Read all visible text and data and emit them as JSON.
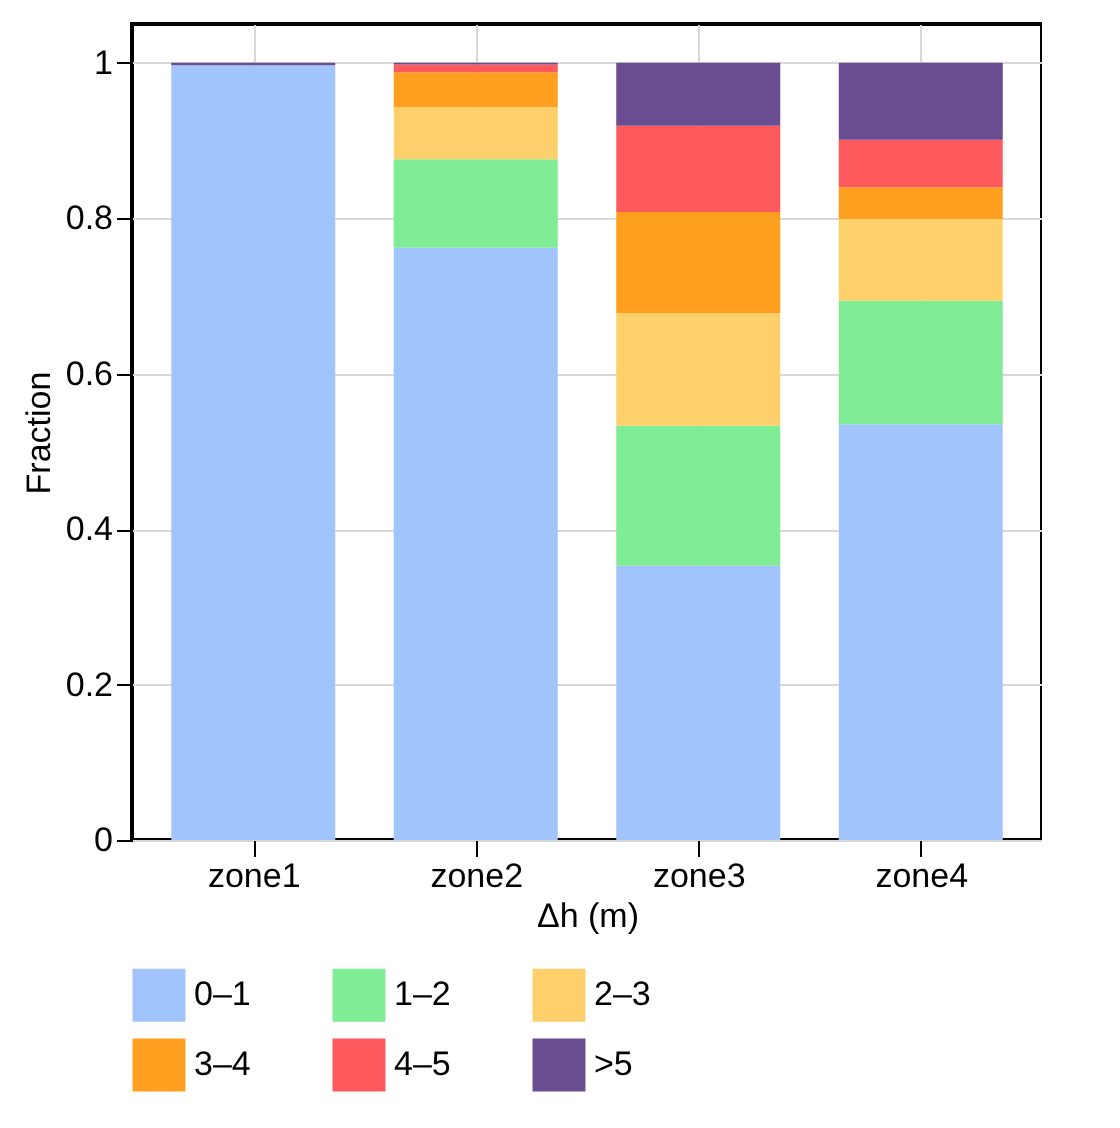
{
  "chart_data": {
    "type": "bar",
    "stacked": true,
    "xlabel": "Δh  (m)",
    "ylabel": "Fraction",
    "categories": [
      "zone1",
      "zone2",
      "zone3",
      "zone4"
    ],
    "series": [
      {
        "name": "0–1",
        "color": "#a2c4fd",
        "values": [
          0.997,
          0.762,
          0.353,
          0.535
        ]
      },
      {
        "name": "1–2",
        "color": "#80ec95",
        "values": [
          0,
          0.114,
          0.18,
          0.159
        ]
      },
      {
        "name": "2–3",
        "color": "#fed06b",
        "values": [
          0,
          0.067,
          0.145,
          0.105
        ]
      },
      {
        "name": "3–4",
        "color": "#fe9f20",
        "values": [
          0,
          0.045,
          0.13,
          0.041
        ]
      },
      {
        "name": "4–5",
        "color": "#fe5a5e",
        "values": [
          0,
          0.01,
          0.111,
          0.061
        ]
      },
      {
        "name": ">5",
        "color": "#6a4c91",
        "values": [
          0.003,
          0.002,
          0.081,
          0.099
        ]
      }
    ],
    "ylim": [
      0,
      1.05
    ],
    "yticks": [
      0,
      0.2,
      0.4,
      0.6,
      0.8,
      1
    ],
    "grid": true,
    "legend": "bottom"
  }
}
